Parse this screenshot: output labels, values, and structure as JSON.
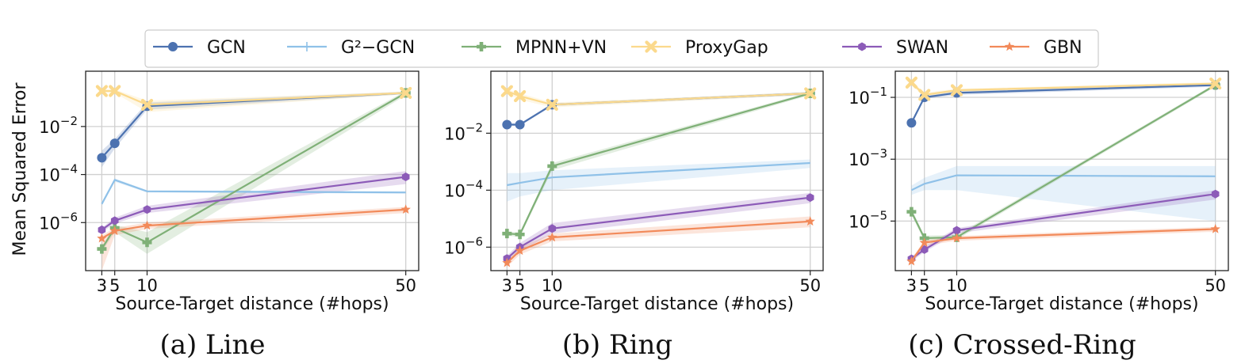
{
  "legend": [
    {
      "key": "gcn",
      "label": "GCN",
      "color": "#4C72B0",
      "marker": "circle"
    },
    {
      "key": "g2gcn",
      "label": "G²−GCN",
      "color": "#8FC1E8",
      "marker": "plus"
    },
    {
      "key": "mpnnvn",
      "label": "MPNN+VN",
      "color": "#7FB077",
      "marker": "pluscross"
    },
    {
      "key": "proxygap",
      "label": "ProxyGap",
      "color": "#FBD98C",
      "marker": "x"
    },
    {
      "key": "swan",
      "label": "SWAN",
      "color": "#8C5BB8",
      "marker": "hexagon"
    },
    {
      "key": "gbn",
      "label": "GBN",
      "color": "#F28A5A",
      "marker": "star"
    }
  ],
  "shared": {
    "ylabel": "Mean Squared Error",
    "xlabel": "Source-Target distance (#hops)",
    "x_ticks": [
      3,
      5,
      10,
      50
    ],
    "x_tick_labels": [
      "3",
      "5",
      "10",
      "50"
    ],
    "xlim": [
      0.5,
      52
    ]
  },
  "chart_data": [
    {
      "type": "line",
      "caption": "(a) Line",
      "yscale": "log",
      "ylim": [
        1e-08,
        2
      ],
      "y_ticks": [
        1e-06,
        0.0001,
        0.01
      ],
      "y_tick_labels": [
        {
          "base": "10",
          "exp": "−6"
        },
        {
          "base": "10",
          "exp": "−4"
        },
        {
          "base": "10",
          "exp": "−2"
        }
      ],
      "x": [
        3,
        5,
        10,
        50
      ],
      "series": [
        {
          "key": "gcn",
          "values": [
            0.0005,
            0.002,
            0.07,
            0.25
          ],
          "band": [
            [
              0.0002,
              0.001
            ],
            [
              0.0012,
              0.003
            ],
            [
              0.05,
              0.1
            ],
            [
              0.22,
              0.28
            ]
          ]
        },
        {
          "key": "g2gcn",
          "values": [
            6e-06,
            6e-05,
            2e-05,
            1.8e-05
          ],
          "band": [
            [
              5e-06,
              7e-06
            ],
            [
              5e-05,
              7e-05
            ],
            [
              1.8e-05,
              2.2e-05
            ],
            [
              1.6e-05,
              2e-05
            ]
          ]
        },
        {
          "key": "mpnnvn",
          "values": [
            8e-08,
            6e-07,
            1.5e-07,
            0.25
          ],
          "band": [
            [
              6e-08,
              1e-07
            ],
            [
              4e-07,
              8e-07
            ],
            [
              5e-08,
              4e-07
            ],
            [
              0.2,
              0.3
            ]
          ]
        },
        {
          "key": "proxygap",
          "values": [
            0.3,
            0.3,
            0.08,
            0.25
          ],
          "band": [
            [
              0.25,
              0.35
            ],
            [
              0.25,
              0.35
            ],
            [
              0.04,
              0.12
            ],
            [
              0.22,
              0.28
            ]
          ]
        },
        {
          "key": "swan",
          "values": [
            5e-07,
            1.2e-06,
            3.5e-06,
            8e-05
          ],
          "band": [
            [
              4e-07,
              6e-07
            ],
            [
              9e-07,
              1.6e-06
            ],
            [
              2.5e-06,
              5e-06
            ],
            [
              4e-05,
              0.00014
            ]
          ]
        },
        {
          "key": "gbn",
          "values": [
            2.2e-07,
            4.5e-07,
            7.5e-07,
            3.5e-06
          ],
          "band": [
            [
              1e-08,
              3e-07
            ],
            [
              3e-07,
              6e-07
            ],
            [
              5.5e-07,
              1e-06
            ],
            [
              2.5e-06,
              4.5e-06
            ]
          ]
        }
      ]
    },
    {
      "type": "line",
      "caption": "(b) Ring",
      "yscale": "log",
      "ylim": [
        1.5e-07,
        1.5
      ],
      "y_ticks": [
        1e-06,
        0.0001,
        0.01
      ],
      "y_tick_labels": [
        {
          "base": "10",
          "exp": "−6"
        },
        {
          "base": "10",
          "exp": "−4"
        },
        {
          "base": "10",
          "exp": "−2"
        }
      ],
      "x": [
        3,
        5,
        10,
        50
      ],
      "series": [
        {
          "key": "gcn",
          "values": [
            0.02,
            0.02,
            0.1,
            0.25
          ],
          "band": [
            [
              0.018,
              0.022
            ],
            [
              0.018,
              0.022
            ],
            [
              0.09,
              0.11
            ],
            [
              0.22,
              0.28
            ]
          ]
        },
        {
          "key": "g2gcn",
          "values": [
            0.00015,
            0.00018,
            0.00028,
            0.0009
          ],
          "band": [
            [
              4e-05,
              0.0004
            ],
            [
              6e-05,
              0.0004
            ],
            [
              0.0001,
              0.0005
            ],
            [
              0.0006,
              0.0012
            ]
          ]
        },
        {
          "key": "mpnnvn",
          "values": [
            3e-06,
            2.8e-06,
            0.0007,
            0.25
          ],
          "band": [
            [
              2.5e-06,
              3.5e-06
            ],
            [
              2.3e-06,
              3.3e-06
            ],
            [
              0.0005,
              0.0009
            ],
            [
              0.22,
              0.28
            ]
          ]
        },
        {
          "key": "proxygap",
          "values": [
            0.3,
            0.2,
            0.1,
            0.25
          ],
          "band": [
            [
              0.25,
              0.35
            ],
            [
              0.15,
              0.25
            ],
            [
              0.08,
              0.12
            ],
            [
              0.22,
              0.28
            ]
          ]
        },
        {
          "key": "swan",
          "values": [
            4e-07,
            1e-06,
            4.5e-06,
            5.5e-05
          ],
          "band": [
            [
              3e-07,
              5e-07
            ],
            [
              7e-07,
              1.4e-06
            ],
            [
              3e-06,
              7e-06
            ],
            [
              3.5e-05,
              8e-05
            ]
          ]
        },
        {
          "key": "gbn",
          "values": [
            2.8e-07,
            7.5e-07,
            2.2e-06,
            8e-06
          ],
          "band": [
            [
              2e-07,
              3.5e-07
            ],
            [
              5.5e-07,
              1e-06
            ],
            [
              1.6e-06,
              3e-06
            ],
            [
              5e-06,
              1.2e-05
            ]
          ]
        }
      ]
    },
    {
      "type": "line",
      "caption": "(c) Crossed-Ring",
      "yscale": "log",
      "ylim": [
        2.5e-07,
        0.7
      ],
      "y_ticks": [
        1e-05,
        0.001,
        0.1
      ],
      "y_tick_labels": [
        {
          "base": "10",
          "exp": "−5"
        },
        {
          "base": "10",
          "exp": "−3"
        },
        {
          "base": "10",
          "exp": "−1"
        }
      ],
      "x": [
        3,
        5,
        10,
        50
      ],
      "series": [
        {
          "key": "gcn",
          "values": [
            0.015,
            0.1,
            0.14,
            0.25
          ],
          "band": [
            [
              0.013,
              0.017
            ],
            [
              0.09,
              0.11
            ],
            [
              0.12,
              0.16
            ],
            [
              0.22,
              0.28
            ]
          ]
        },
        {
          "key": "g2gcn",
          "values": [
            0.0001,
            0.00016,
            0.0003,
            0.00028
          ],
          "band": [
            [
              7e-05,
              0.00014
            ],
            [
              0.0001,
              0.00025
            ],
            [
              0.0001,
              0.0006
            ],
            [
              1e-05,
              0.0006
            ]
          ]
        },
        {
          "key": "mpnnvn",
          "values": [
            2e-05,
            2.8e-06,
            3e-06,
            0.25
          ],
          "band": [
            [
              1.6e-05,
              2.5e-05
            ],
            [
              2.3e-06,
              3.4e-06
            ],
            [
              2.5e-06,
              3.6e-06
            ],
            [
              0.22,
              0.28
            ]
          ]
        },
        {
          "key": "proxygap",
          "values": [
            0.3,
            0.12,
            0.17,
            0.28
          ],
          "band": [
            [
              0.25,
              0.35
            ],
            [
              0.1,
              0.14
            ],
            [
              0.15,
              0.19
            ],
            [
              0.25,
              0.31
            ]
          ]
        },
        {
          "key": "swan",
          "values": [
            6e-07,
            1.2e-06,
            5e-06,
            7.5e-05
          ],
          "band": [
            [
              5e-07,
              7e-07
            ],
            [
              1e-06,
              1.5e-06
            ],
            [
              4e-06,
              6e-06
            ],
            [
              5e-05,
              0.0001
            ]
          ]
        },
        {
          "key": "gbn",
          "values": [
            5e-07,
            2e-06,
            2.8e-06,
            5.5e-06
          ],
          "band": [
            [
              4e-07,
              6e-07
            ],
            [
              1.6e-06,
              2.4e-06
            ],
            [
              2.3e-06,
              3.3e-06
            ],
            [
              4.5e-06,
              6.5e-06
            ]
          ]
        }
      ]
    }
  ]
}
